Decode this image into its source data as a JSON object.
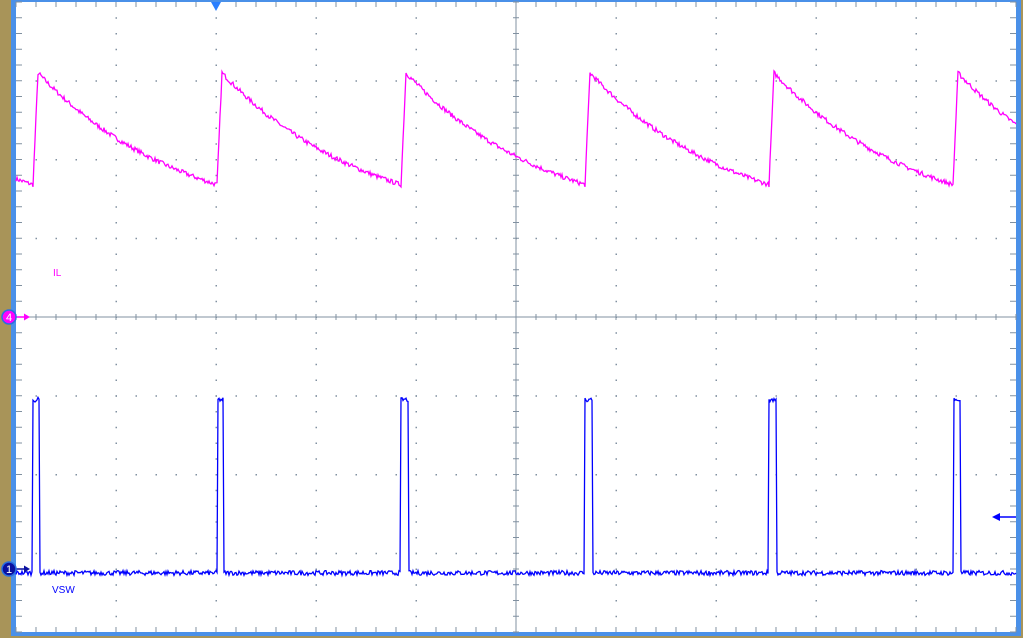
{
  "chart_data": {
    "type": "line",
    "grid": true,
    "x_divisions": 10,
    "y_divisions": 8,
    "units": "divisions",
    "trigger_position_div": 2.0,
    "trigger_level_div": -2.54,
    "series": [
      {
        "name": "IL",
        "channel": "4",
        "color": "#ff00ff",
        "reference_div": 0,
        "waveform": "sawtooth",
        "period_div": 1.84,
        "first_edge_div": 0.17,
        "rise_div": 0.05,
        "min_div": 1.68,
        "max_div": 3.1
      },
      {
        "name": "VSW",
        "channel": "1",
        "color": "#0000ff",
        "reference_div": -3.2,
        "waveform": "pulse",
        "period_div": 1.84,
        "first_edge_div": 0.17,
        "pulse_width_div": 0.07,
        "high_div": -1.05,
        "low_div": -3.25
      }
    ]
  },
  "colors": {
    "background": "#ffffff",
    "grid": "#8090a0",
    "frame": "#4a90e8",
    "bezel": "#a89459"
  }
}
